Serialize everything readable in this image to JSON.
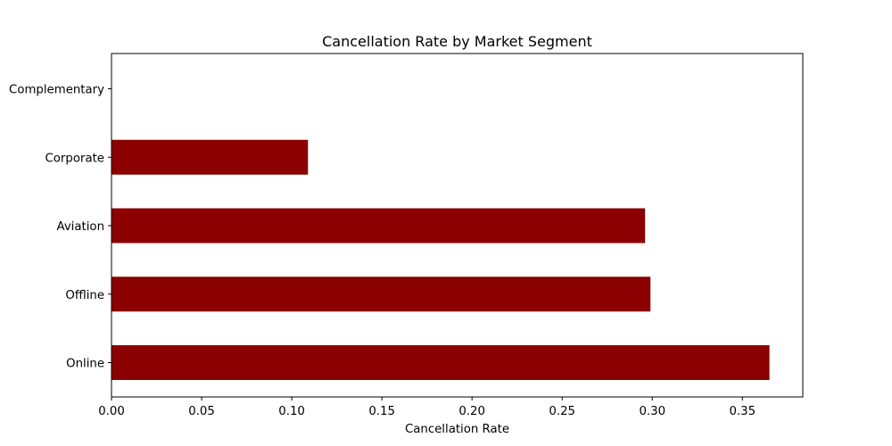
{
  "chart_data": {
    "type": "bar",
    "orientation": "horizontal",
    "title": "Cancellation Rate by Market Segment",
    "xlabel": "Cancellation Rate",
    "ylabel": "",
    "categories": [
      "Online",
      "Offline",
      "Aviation",
      "Corporate",
      "Complementary"
    ],
    "values": [
      0.365,
      0.299,
      0.296,
      0.109,
      0.0
    ],
    "xlim": [
      0,
      0.3835
    ],
    "xticks": [
      0.0,
      0.05,
      0.1,
      0.15,
      0.2,
      0.25,
      0.3,
      0.35
    ],
    "xtick_labels": [
      "0.00",
      "0.05",
      "0.10",
      "0.15",
      "0.20",
      "0.25",
      "0.30",
      "0.35"
    ],
    "bar_color": "#8b0000",
    "grid": false,
    "legend": "none"
  }
}
